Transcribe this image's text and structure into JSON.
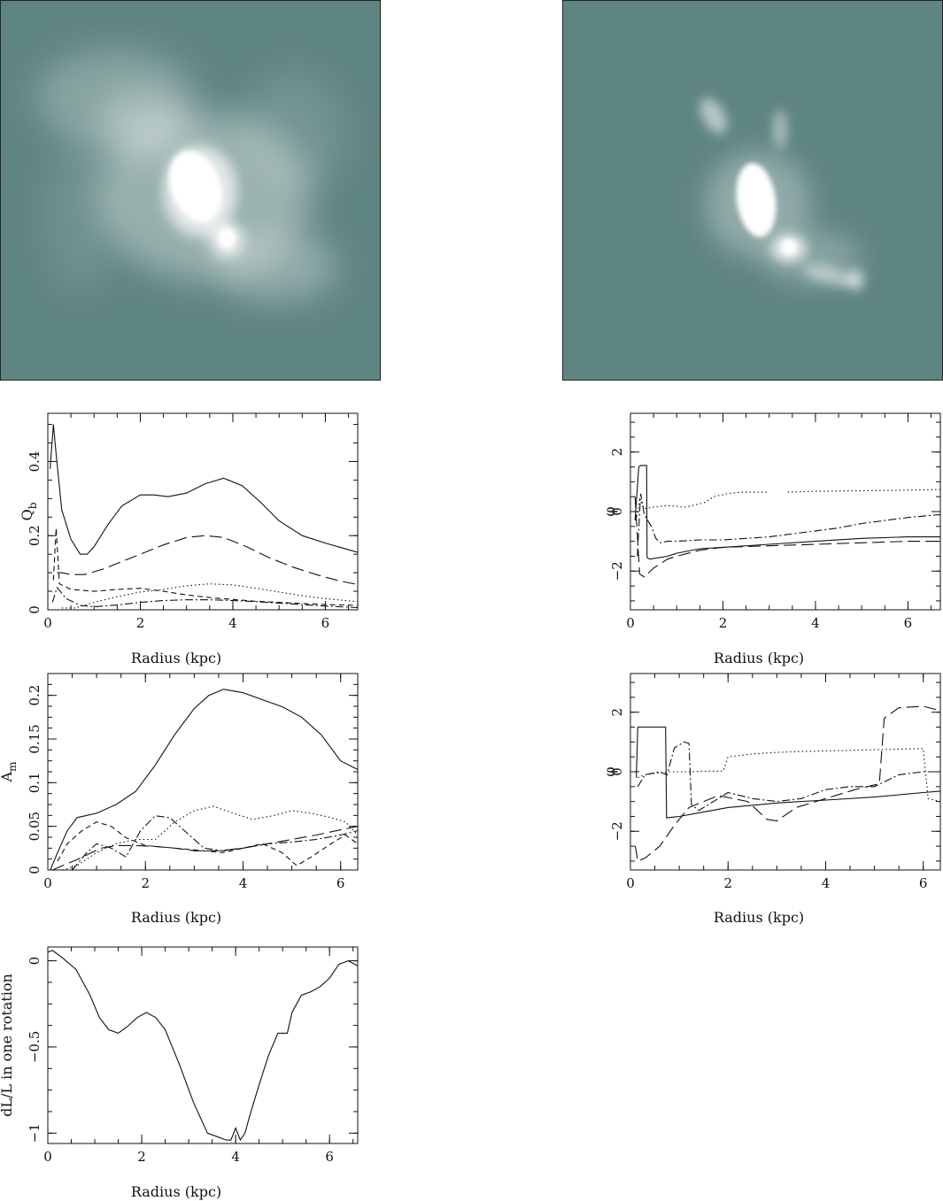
{
  "images": [
    {
      "name": "galaxy-image-left"
    },
    {
      "name": "galaxy-image-right"
    }
  ],
  "colors": {
    "image_background": "#5f8582",
    "image_glow": "#ffffff",
    "ink": "#111111"
  },
  "chart_data": [
    {
      "id": "qb",
      "type": "line",
      "xlabel": "Radius (kpc)",
      "ylabel": "Q_b",
      "xlim": [
        0,
        6.7
      ],
      "ylim": [
        0,
        0.53
      ],
      "xticks": [
        "0",
        "2",
        "4",
        "6"
      ],
      "xtick_values": [
        0,
        2,
        4,
        6
      ],
      "yticks": [
        "0",
        "0.2",
        "0.4"
      ],
      "ytick_values": [
        0,
        0.2,
        0.4
      ],
      "grid": false,
      "series": [
        {
          "style": "solid",
          "x": [
            0.05,
            0.12,
            0.18,
            0.3,
            0.5,
            0.7,
            0.85,
            1.0,
            1.3,
            1.6,
            2.0,
            2.3,
            2.6,
            3.0,
            3.4,
            3.8,
            4.2,
            4.6,
            5.0,
            5.5,
            6.0,
            6.7
          ],
          "y": [
            0.38,
            0.5,
            0.42,
            0.27,
            0.19,
            0.15,
            0.15,
            0.17,
            0.23,
            0.28,
            0.31,
            0.31,
            0.305,
            0.315,
            0.34,
            0.355,
            0.335,
            0.29,
            0.24,
            0.2,
            0.18,
            0.155
          ]
        },
        {
          "style": "long-dash",
          "x": [
            0.2,
            0.3,
            0.5,
            0.8,
            1.2,
            1.6,
            2.0,
            2.5,
            3.0,
            3.4,
            3.8,
            4.3,
            4.8,
            5.3,
            5.8,
            6.3,
            6.7
          ],
          "y": [
            0.1,
            0.1,
            0.095,
            0.095,
            0.11,
            0.13,
            0.15,
            0.175,
            0.195,
            0.2,
            0.195,
            0.17,
            0.14,
            0.115,
            0.095,
            0.078,
            0.068
          ]
        },
        {
          "style": "dotted",
          "x": [
            0.3,
            0.6,
            1.0,
            1.5,
            2.0,
            2.5,
            3.0,
            3.5,
            4.0,
            4.5,
            5.0,
            5.5,
            6.0,
            6.7
          ],
          "y": [
            0.005,
            0.005,
            0.02,
            0.035,
            0.048,
            0.055,
            0.065,
            0.07,
            0.067,
            0.058,
            0.048,
            0.038,
            0.03,
            0.022
          ]
        },
        {
          "style": "short-dash",
          "x": [
            0.12,
            0.18,
            0.25,
            0.5,
            1.0,
            1.5,
            2.0,
            2.5,
            3.0,
            3.5,
            4.0,
            4.5,
            5.0,
            5.5,
            6.0,
            6.7
          ],
          "y": [
            0.08,
            0.22,
            0.07,
            0.055,
            0.05,
            0.055,
            0.058,
            0.05,
            0.04,
            0.033,
            0.028,
            0.023,
            0.02,
            0.017,
            0.014,
            0.012
          ]
        },
        {
          "style": "dash-dot",
          "x": [
            0.1,
            0.2,
            0.4,
            0.7,
            1.0,
            1.5,
            2.0,
            2.5,
            3.0,
            3.5,
            4.0,
            4.5,
            5.0,
            5.5,
            6.0,
            6.7
          ],
          "y": [
            0.02,
            0.06,
            0.03,
            0.012,
            0.008,
            0.013,
            0.02,
            0.025,
            0.027,
            0.027,
            0.025,
            0.022,
            0.018,
            0.014,
            0.01,
            0.006
          ]
        }
      ]
    },
    {
      "id": "phase-top",
      "type": "line",
      "xlabel": "Radius (kpc)",
      "ylabel": "φ",
      "xlim": [
        0,
        6.7
      ],
      "ylim": [
        -3.3,
        3.3
      ],
      "xticks": [
        "0",
        "2",
        "4",
        "6"
      ],
      "xtick_values": [
        0,
        2,
        4,
        6
      ],
      "yticks": [
        "−2",
        "0",
        "2"
      ],
      "ytick_values": [
        -2,
        0,
        2
      ],
      "grid": false,
      "series": [
        {
          "style": "solid",
          "x": [
            0.1,
            0.18,
            0.22,
            0.35,
            0.36,
            0.42,
            0.5,
            0.8,
            1.0,
            1.5,
            2.0,
            3.0,
            4.0,
            5.0,
            6.0,
            6.7
          ],
          "y": [
            -0.3,
            1.5,
            1.55,
            1.55,
            -1.55,
            -1.6,
            -1.58,
            -1.5,
            -1.4,
            -1.25,
            -1.2,
            -1.1,
            -1.0,
            -0.9,
            -0.85,
            -0.85
          ]
        },
        {
          "style": "long-dash",
          "x": [
            0.1,
            0.2,
            0.3,
            0.5,
            0.8,
            1.0,
            1.5,
            2.0,
            3.0,
            4.0,
            5.0,
            6.0,
            6.7
          ],
          "y": [
            0.5,
            -2.1,
            -2.2,
            -1.9,
            -1.6,
            -1.5,
            -1.3,
            -1.2,
            -1.15,
            -1.1,
            -1.05,
            -1.0,
            -1.0
          ]
        },
        {
          "style": "dotted",
          "x": [
            0.12,
            0.2,
            0.3,
            0.5,
            0.8,
            1.2,
            1.6,
            1.8,
            2.1,
            2.4,
            2.8,
            3.0
          ],
          "y": [
            -0.3,
            0.4,
            0.1,
            0.15,
            0.2,
            0.15,
            0.3,
            0.5,
            0.6,
            0.65,
            0.65,
            0.65
          ]
        },
        {
          "style": "dotted",
          "x": [
            3.4,
            4.0,
            5.0,
            6.0,
            6.7
          ],
          "y": [
            0.65,
            0.68,
            0.7,
            0.72,
            0.74
          ]
        },
        {
          "style": "dash-dot",
          "x": [
            0.15,
            0.22,
            0.3,
            0.45,
            0.55,
            0.65,
            0.8,
            1.0,
            1.5,
            2.0,
            2.5,
            3.0,
            3.5,
            4.0,
            4.5,
            5.0,
            5.5,
            6.0,
            6.7
          ],
          "y": [
            -1.5,
            0.6,
            -0.1,
            -0.5,
            -0.9,
            -1.05,
            -1.0,
            -1.0,
            -0.95,
            -0.95,
            -0.9,
            -0.85,
            -0.75,
            -0.65,
            -0.55,
            -0.4,
            -0.3,
            -0.2,
            -0.1
          ]
        }
      ]
    },
    {
      "id": "am",
      "type": "line",
      "xlabel": "Radius (kpc)",
      "ylabel": "A_m",
      "xlim": [
        0,
        6.35
      ],
      "ylim": [
        0,
        0.225
      ],
      "xticks": [
        "0",
        "2",
        "4",
        "6"
      ],
      "xtick_values": [
        0,
        2,
        4,
        6
      ],
      "yticks": [
        "0",
        "0.05",
        "0.1",
        "0.15",
        "0.2"
      ],
      "ytick_values": [
        0,
        0.05,
        0.1,
        0.15,
        0.2
      ],
      "grid": false,
      "series": [
        {
          "style": "solid",
          "x": [
            0.05,
            0.2,
            0.4,
            0.6,
            1.0,
            1.4,
            1.8,
            2.2,
            2.6,
            3.0,
            3.3,
            3.6,
            4.0,
            4.4,
            4.8,
            5.2,
            5.6,
            6.0,
            6.35
          ],
          "y": [
            0.0,
            0.02,
            0.045,
            0.06,
            0.065,
            0.075,
            0.09,
            0.12,
            0.155,
            0.185,
            0.2,
            0.207,
            0.203,
            0.195,
            0.187,
            0.175,
            0.155,
            0.125,
            0.115
          ]
        },
        {
          "style": "long-dash",
          "x": [
            0.1,
            0.3,
            0.6,
            0.9,
            1.1,
            1.4,
            1.8,
            2.2,
            2.6,
            3.0,
            3.5,
            4.0,
            4.5,
            5.0,
            5.5,
            6.0,
            6.35
          ],
          "y": [
            0.0,
            0.005,
            0.012,
            0.02,
            0.025,
            0.028,
            0.028,
            0.027,
            0.025,
            0.022,
            0.022,
            0.025,
            0.03,
            0.035,
            0.04,
            0.046,
            0.05
          ]
        },
        {
          "style": "dotted",
          "x": [
            0.3,
            0.6,
            1.0,
            1.4,
            1.8,
            2.2,
            2.6,
            3.0,
            3.4,
            3.8,
            4.2,
            4.6,
            5.0,
            5.4,
            5.8,
            6.1,
            6.35
          ],
          "y": [
            0.0,
            0.005,
            0.02,
            0.03,
            0.035,
            0.035,
            0.055,
            0.068,
            0.073,
            0.065,
            0.058,
            0.062,
            0.068,
            0.065,
            0.06,
            0.055,
            0.04
          ]
        },
        {
          "style": "short-dash",
          "x": [
            0.2,
            0.4,
            0.7,
            1.0,
            1.3,
            1.6,
            2.0,
            2.4,
            2.8,
            3.2,
            3.6,
            4.0,
            4.4,
            4.8,
            5.1,
            5.4,
            5.8,
            6.1,
            6.35
          ],
          "y": [
            0.01,
            0.03,
            0.045,
            0.055,
            0.05,
            0.037,
            0.028,
            0.026,
            0.024,
            0.022,
            0.02,
            0.025,
            0.03,
            0.02,
            0.005,
            0.015,
            0.03,
            0.04,
            0.03
          ]
        },
        {
          "style": "dash-dot",
          "x": [
            0.5,
            0.8,
            1.0,
            1.3,
            1.6,
            1.9,
            2.2,
            2.5,
            2.8,
            3.2,
            3.6,
            4.0,
            4.5,
            5.0,
            5.5,
            6.0,
            6.35
          ],
          "y": [
            0.0,
            0.02,
            0.03,
            0.025,
            0.015,
            0.045,
            0.062,
            0.06,
            0.045,
            0.025,
            0.022,
            0.025,
            0.03,
            0.032,
            0.035,
            0.04,
            0.045
          ]
        }
      ]
    },
    {
      "id": "phase-bottom",
      "type": "line",
      "xlabel": "Radius (kpc)",
      "ylabel": "φ",
      "xlim": [
        0,
        6.35
      ],
      "ylim": [
        -3.3,
        3.3
      ],
      "xticks": [
        "0",
        "2",
        "4",
        "6"
      ],
      "xtick_values": [
        0,
        2,
        4,
        6
      ],
      "yticks": [
        "−2",
        "0",
        "2"
      ],
      "ytick_values": [
        -2,
        0,
        2
      ],
      "grid": false,
      "series": [
        {
          "style": "solid",
          "x": [
            0.12,
            0.15,
            0.7,
            0.72,
            0.74,
            1.0,
            1.5,
            2.0,
            3.0,
            4.0,
            5.0,
            6.0,
            6.35
          ],
          "y": [
            -0.2,
            1.5,
            1.5,
            1.5,
            -1.55,
            -1.5,
            -1.35,
            -1.2,
            -1.05,
            -0.95,
            -0.85,
            -0.7,
            -0.65
          ]
        },
        {
          "style": "long-dash",
          "x": [
            0.1,
            0.15,
            0.3,
            0.6,
            0.9,
            1.2,
            1.8,
            2.4,
            2.8,
            3.0,
            3.4,
            4.0,
            4.6,
            5.1,
            5.2,
            5.5,
            6.0,
            6.35
          ],
          "y": [
            -2.5,
            -3.0,
            -2.9,
            -2.5,
            -1.8,
            -1.2,
            -0.8,
            -1.0,
            -1.6,
            -1.65,
            -1.2,
            -0.9,
            -0.6,
            -0.4,
            1.8,
            2.15,
            2.2,
            2.05
          ]
        },
        {
          "style": "dotted",
          "x": [
            0.15,
            0.3,
            0.8,
            1.2,
            1.6,
            1.9,
            2.0,
            2.5,
            3.0,
            3.5,
            4.0,
            4.5,
            5.0,
            5.5,
            6.0,
            6.1,
            6.35
          ],
          "y": [
            -0.2,
            -0.1,
            0.0,
            0.0,
            0.02,
            0.02,
            0.5,
            0.6,
            0.65,
            0.68,
            0.7,
            0.72,
            0.74,
            0.76,
            0.78,
            -0.9,
            -1.0
          ]
        },
        {
          "style": "dash-dot",
          "x": [
            0.15,
            0.3,
            0.6,
            0.75,
            0.9,
            1.1,
            1.2,
            1.25,
            1.4,
            2.0,
            2.5,
            3.0,
            3.5,
            4.0,
            4.5,
            5.0,
            5.5,
            6.0,
            6.35
          ],
          "y": [
            -0.5,
            -0.1,
            0.0,
            -0.1,
            0.8,
            1.0,
            0.95,
            -1.1,
            -1.3,
            -0.7,
            -0.9,
            -1.0,
            -0.9,
            -0.6,
            -0.5,
            -0.5,
            -0.1,
            0.0,
            0.0
          ]
        }
      ]
    },
    {
      "id": "dl",
      "type": "line",
      "xlabel": "Radius (kpc)",
      "ylabel": "dL/L in one rotation",
      "xlim": [
        0,
        6.6
      ],
      "ylim": [
        -1.06,
        0.08
      ],
      "xticks": [
        "0",
        "2",
        "4",
        "6"
      ],
      "xtick_values": [
        0,
        2,
        4,
        6
      ],
      "yticks": [
        "−1",
        "−0.5",
        "0"
      ],
      "ytick_values": [
        -1,
        -0.5,
        0
      ],
      "grid": false,
      "series": [
        {
          "style": "solid",
          "x": [
            0.0,
            0.1,
            0.3,
            0.6,
            0.9,
            1.1,
            1.3,
            1.5,
            1.7,
            1.9,
            2.1,
            2.3,
            2.5,
            2.8,
            3.1,
            3.4,
            3.6,
            3.8,
            3.9,
            4.0,
            4.1,
            4.2,
            4.3,
            4.5,
            4.7,
            4.9,
            5.1,
            5.2,
            5.4,
            5.6,
            5.8,
            6.0,
            6.2,
            6.4,
            6.6
          ],
          "y": [
            0.05,
            0.06,
            0.02,
            -0.05,
            -0.2,
            -0.33,
            -0.4,
            -0.42,
            -0.38,
            -0.33,
            -0.3,
            -0.33,
            -0.4,
            -0.6,
            -0.82,
            -1.0,
            -1.02,
            -1.04,
            -1.04,
            -0.97,
            -1.04,
            -1.0,
            -0.9,
            -0.72,
            -0.55,
            -0.42,
            -0.42,
            -0.3,
            -0.2,
            -0.18,
            -0.15,
            -0.1,
            -0.02,
            0.0,
            -0.03
          ]
        }
      ]
    }
  ]
}
